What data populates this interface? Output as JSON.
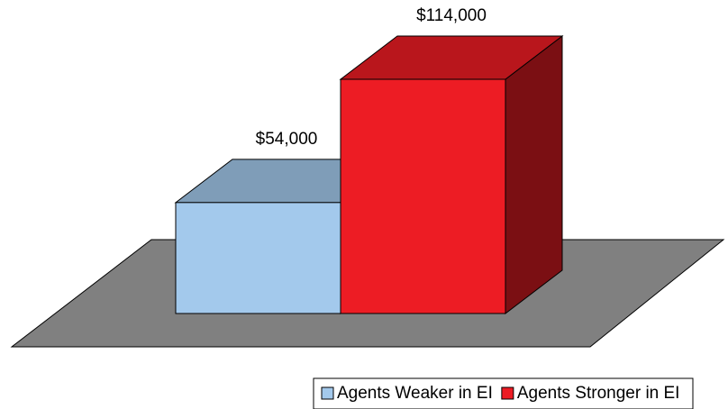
{
  "chart_data": {
    "type": "bar3d",
    "series": [
      {
        "name": "Agents Weaker in EI",
        "color": "#a3c9ec",
        "values": [
          54000
        ],
        "value_labels": [
          "$54,000"
        ]
      },
      {
        "name": "Agents Stronger in EI",
        "color": "#ed1c24",
        "values": [
          114000
        ],
        "value_labels": [
          "$114,000"
        ]
      }
    ],
    "legend": "bottom-right"
  }
}
